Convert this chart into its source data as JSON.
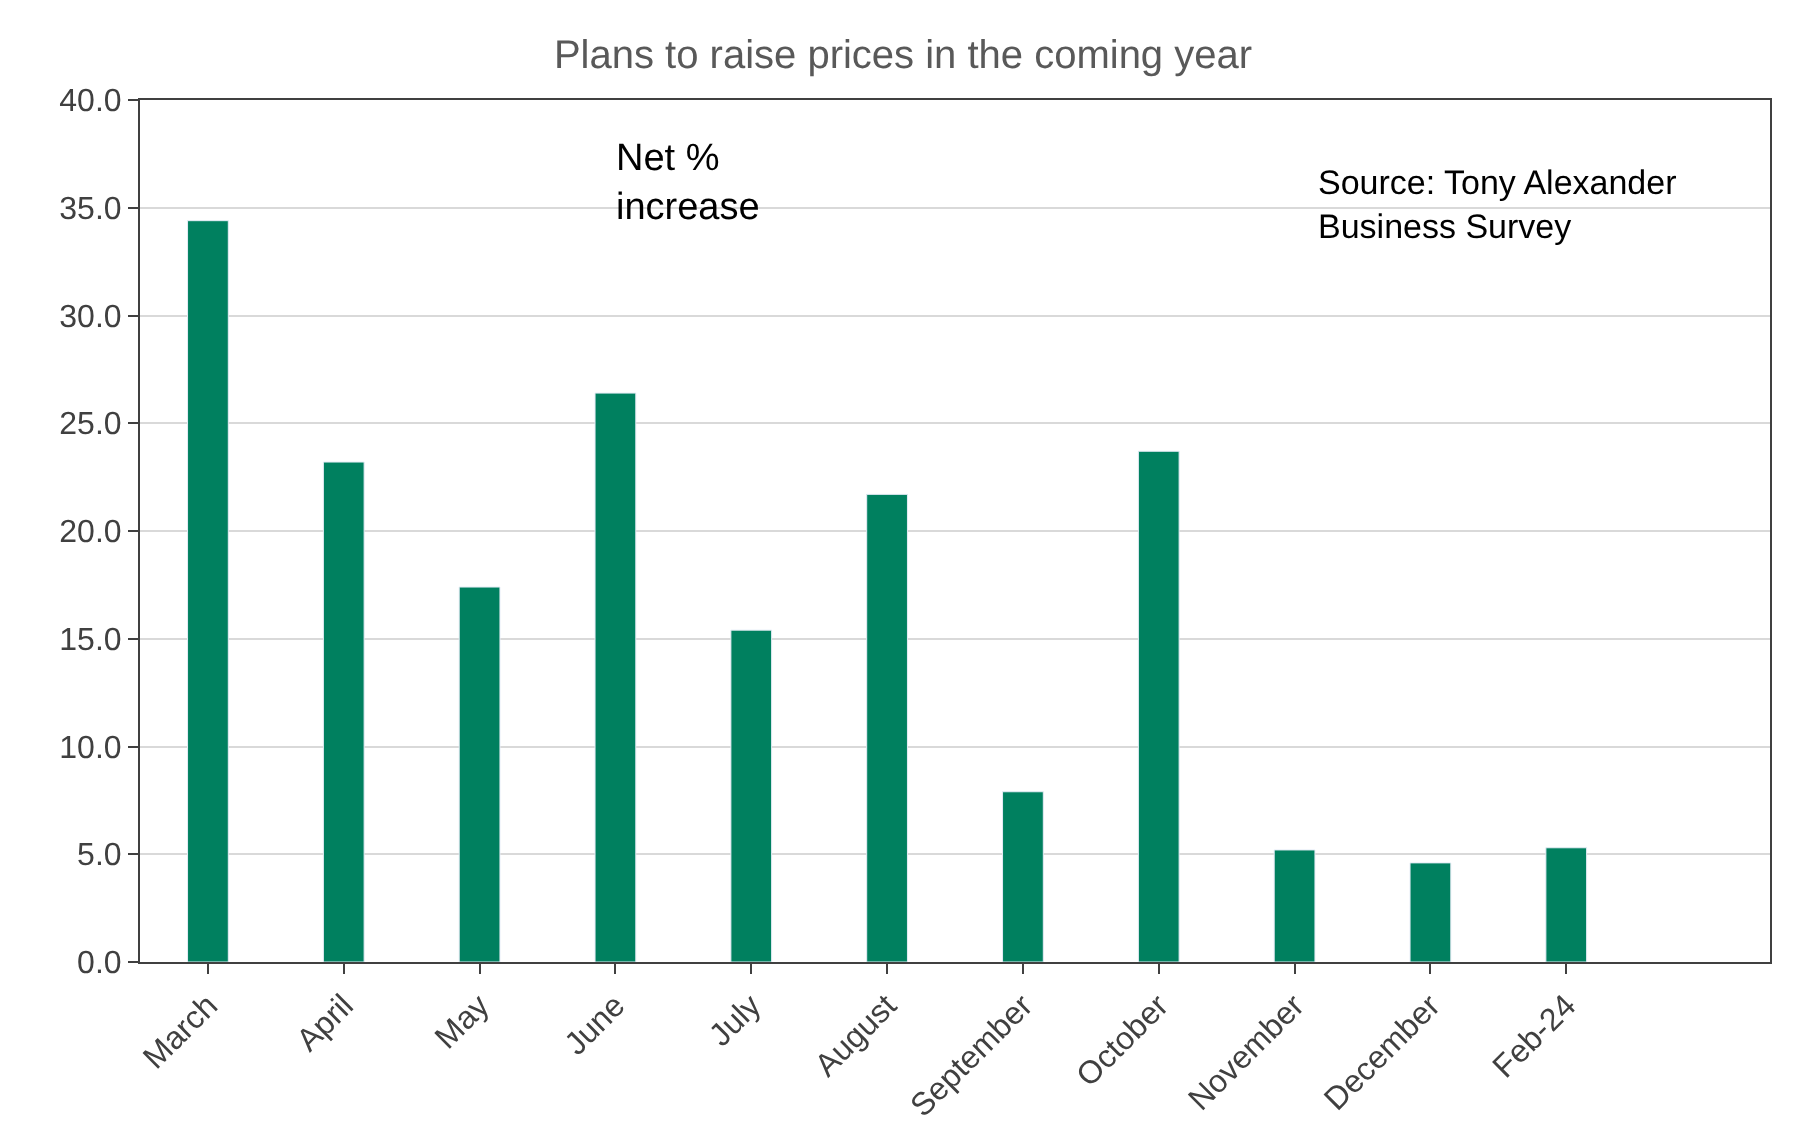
{
  "chart_data": {
    "type": "bar",
    "title": "Plans to raise prices in the coming year",
    "categories": [
      "March",
      "April",
      "May",
      "June",
      "July",
      "August",
      "September",
      "October",
      "November",
      "December",
      "Feb-24",
      null
    ],
    "values": [
      34.4,
      23.2,
      17.4,
      26.4,
      15.4,
      21.7,
      7.9,
      23.7,
      5.2,
      4.6,
      5.3,
      null
    ],
    "color": "#00805f",
    "ylim": [
      0,
      40
    ],
    "yticks": [
      {
        "value": 0,
        "label": "0.0"
      },
      {
        "value": 5,
        "label": "5.0"
      },
      {
        "value": 10,
        "label": "10.0"
      },
      {
        "value": 15,
        "label": "15.0"
      },
      {
        "value": 20,
        "label": "20.0"
      },
      {
        "value": 25,
        "label": "25.0"
      },
      {
        "value": 30,
        "label": "30.0"
      },
      {
        "value": 35,
        "label": "35.0"
      },
      {
        "value": 40,
        "label": "40.0"
      }
    ],
    "grid": "y",
    "annotations": [
      "Net %\nincrease",
      "Source: Tony Alexander\nBusiness Survey"
    ]
  }
}
